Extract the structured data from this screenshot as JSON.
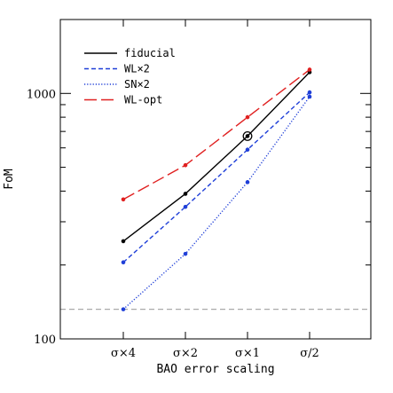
{
  "chart_data": {
    "type": "line",
    "title": "",
    "xlabel": "BAO error scaling",
    "ylabel": "FoM",
    "y_scale": "log",
    "ylim": [
      100,
      2000
    ],
    "y_tick_labels": [
      "100",
      "1000"
    ],
    "categories": [
      "σ×4",
      "σ×2",
      "σ×1",
      "σ/2"
    ],
    "legend_position": "top-left",
    "grid": false,
    "series": [
      {
        "name": "fiducial",
        "color": "#000000",
        "style": "solid",
        "values": [
          250,
          390,
          670,
          1220
        ]
      },
      {
        "name": "WL×2",
        "color": "#1f3fd8",
        "style": "short-dashed",
        "values": [
          205,
          345,
          590,
          1010
        ]
      },
      {
        "name": "SN×2",
        "color": "#1f3fd8",
        "style": "dotted",
        "values": [
          132,
          222,
          435,
          970
        ]
      },
      {
        "name": "WL-opt",
        "color": "#e02020",
        "style": "long-dashed",
        "values": [
          370,
          510,
          800,
          1250
        ]
      }
    ],
    "highlight": {
      "series": "fiducial",
      "category": "σ×1",
      "marker": "circled-point"
    },
    "reference_line": {
      "value": 132,
      "color": "#aaaaaa",
      "style": "dashed"
    }
  }
}
